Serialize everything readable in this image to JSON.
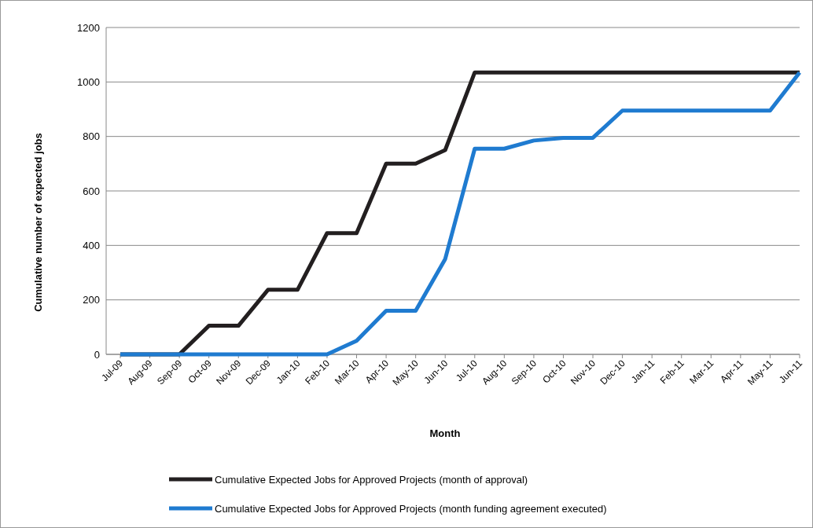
{
  "chart_data": {
    "type": "line",
    "xlabel": "Month",
    "ylabel": "Cumulative number of expected jobs",
    "categories": [
      "Jul-09",
      "Aug-09",
      "Sep-09",
      "Oct-09",
      "Nov-09",
      "Dec-09",
      "Jan-10",
      "Feb-10",
      "Mar-10",
      "Apr-10",
      "May-10",
      "Jun-10",
      "Jul-10",
      "Aug-10",
      "Sep-10",
      "Oct-10",
      "Nov-10",
      "Dec-10",
      "Jan-11",
      "Feb-11",
      "Mar-11",
      "Apr-11",
      "May-11",
      "Jun-11"
    ],
    "series": [
      {
        "name": "Cumulative Expected Jobs for Approved Projects (month of approval)",
        "color": "#231f20",
        "values": [
          0,
          0,
          0,
          105,
          105,
          237,
          237,
          445,
          445,
          700,
          700,
          750,
          1035,
          1035,
          1035,
          1035,
          1035,
          1035,
          1035,
          1035,
          1035,
          1035,
          1035,
          1035
        ]
      },
      {
        "name": "Cumulative Expected Jobs for Approved Projects (month funding agreement executed)",
        "color": "#1f7bd0",
        "values": [
          0,
          0,
          0,
          0,
          0,
          0,
          0,
          0,
          50,
          160,
          160,
          350,
          755,
          755,
          785,
          795,
          795,
          895,
          895,
          895,
          895,
          895,
          895,
          1035
        ]
      }
    ],
    "ylim": [
      0,
      1200
    ],
    "yticks": [
      0,
      200,
      400,
      600,
      800,
      1000,
      1200
    ],
    "grid": "y",
    "legend": "bottom",
    "marker": "none",
    "line_style": "solid"
  }
}
